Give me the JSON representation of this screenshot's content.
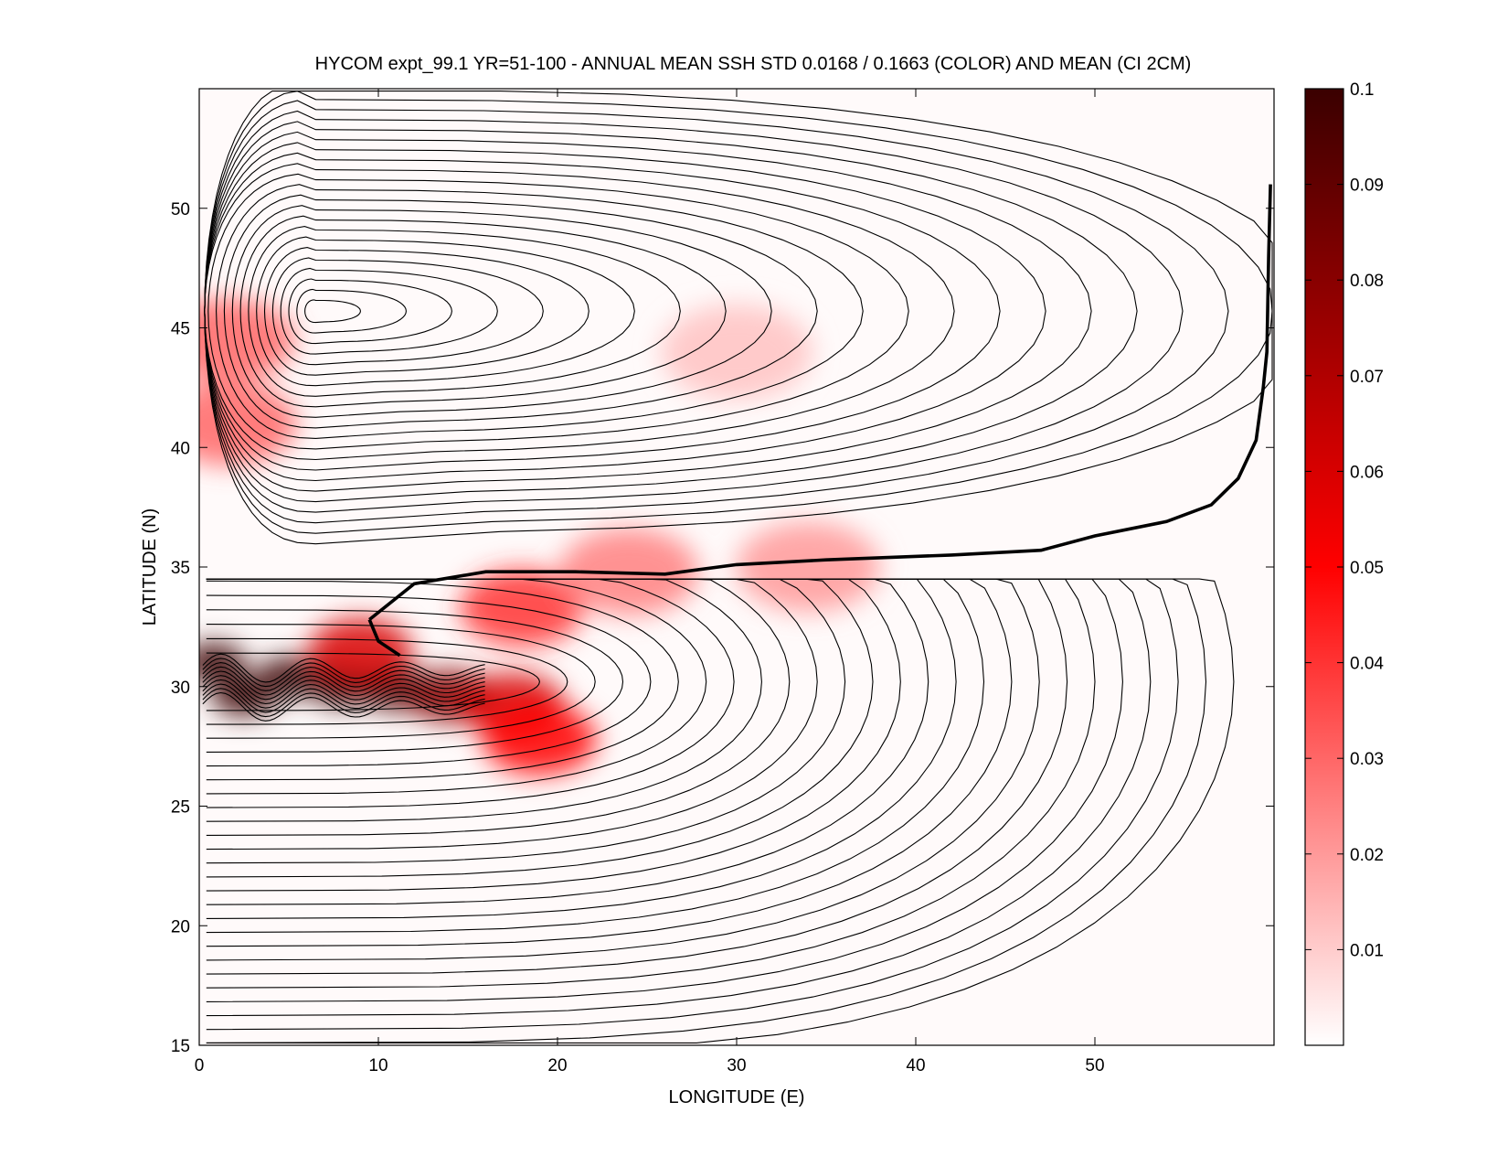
{
  "chart_data": {
    "type": "heatmap",
    "title": "HYCOM expt_99.1 YR=51-100 - ANNUAL MEAN SSH STD 0.0168 / 0.1663 (COLOR) AND MEAN (CI 2CM)",
    "xlabel": "LONGITUDE (E)",
    "ylabel": "LATITUDE (N)",
    "xlim": [
      0,
      60
    ],
    "ylim": [
      15,
      55
    ],
    "x_ticks": [
      0,
      10,
      20,
      30,
      40,
      50
    ],
    "x_tick_labels": [
      "0",
      "10",
      "20",
      "30",
      "40",
      "50"
    ],
    "y_ticks": [
      15,
      20,
      25,
      30,
      35,
      40,
      45,
      50
    ],
    "y_tick_labels": [
      "15",
      "20",
      "25",
      "30",
      "35",
      "40",
      "45",
      "50"
    ],
    "colorbar": {
      "range": [
        0,
        0.1
      ],
      "ticks": [
        0.01,
        0.02,
        0.03,
        0.04,
        0.05,
        0.06,
        0.07,
        0.08,
        0.09,
        0.1
      ],
      "tick_labels": [
        "0.01",
        "0.02",
        "0.03",
        "0.04",
        "0.05",
        "0.06",
        "0.07",
        "0.08",
        "0.09",
        "0.1"
      ],
      "colormap": [
        "#ffffff",
        "#ff0000",
        "#3a0000"
      ]
    },
    "color_field": {
      "description_values": "SSH variability maxima (data units)",
      "hotspots": [
        {
          "lon": 0.8,
          "lat": 31.0,
          "value": 0.1
        },
        {
          "lon": 2.5,
          "lat": 29.6,
          "value": 0.1
        },
        {
          "lon": 5.0,
          "lat": 30.4,
          "value": 0.1
        },
        {
          "lon": 8.0,
          "lat": 30.0,
          "value": 0.1
        },
        {
          "lon": 11.0,
          "lat": 29.9,
          "value": 0.095
        },
        {
          "lon": 14.0,
          "lat": 29.6,
          "value": 0.08
        },
        {
          "lon": 17.5,
          "lat": 29.2,
          "value": 0.06
        },
        {
          "lon": 19.0,
          "lat": 27.8,
          "value": 0.05
        },
        {
          "lon": 9.0,
          "lat": 31.5,
          "value": 0.06
        },
        {
          "lon": 18.0,
          "lat": 33.3,
          "value": 0.04
        },
        {
          "lon": 24.0,
          "lat": 34.8,
          "value": 0.025
        },
        {
          "lon": 34.0,
          "lat": 35.0,
          "value": 0.02
        },
        {
          "lon": 1.6,
          "lat": 44.5,
          "value": 0.03
        },
        {
          "lon": 1.7,
          "lat": 41.0,
          "value": 0.03
        },
        {
          "lon": 30.0,
          "lat": 44.0,
          "value": 0.012
        }
      ],
      "background_value": 0.004
    },
    "mean_ssh_contours": {
      "interval": "2 cm",
      "zero_contour": [
        [
          9.5,
          32.8
        ],
        [
          12.0,
          34.3
        ],
        [
          16.0,
          34.8
        ],
        [
          21.0,
          34.8
        ],
        [
          26.0,
          34.7
        ],
        [
          30.0,
          35.1
        ],
        [
          35.0,
          35.3
        ],
        [
          42.0,
          35.5
        ],
        [
          47.0,
          35.7
        ],
        [
          50.0,
          36.3
        ],
        [
          54.0,
          36.9
        ],
        [
          56.5,
          37.6
        ],
        [
          58.0,
          38.7
        ],
        [
          59.0,
          40.3
        ],
        [
          59.4,
          42.5
        ],
        [
          59.6,
          44.0
        ],
        [
          59.7,
          48.0
        ],
        [
          59.8,
          51.0
        ]
      ],
      "zero_contour_hook": [
        [
          11.2,
          31.3
        ],
        [
          10.0,
          31.9
        ],
        [
          9.5,
          32.8
        ]
      ]
    }
  }
}
